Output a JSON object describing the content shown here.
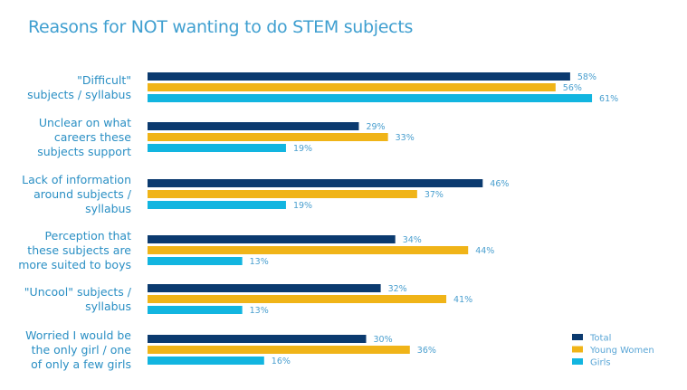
{
  "chart_data": {
    "type": "bar",
    "orientation": "horizontal",
    "title": "Reasons for NOT wanting to do STEM subjects",
    "xlabel": "",
    "ylabel": "",
    "xlim": [
      0,
      100
    ],
    "grid": false,
    "legend_position": "bottom-right",
    "categories": [
      [
        "\"Difficult\"",
        "subjects / syllabus"
      ],
      [
        "Unclear on what",
        "careers these",
        "subjects support"
      ],
      [
        "Lack of information",
        "around subjects /",
        "syllabus"
      ],
      [
        "Perception that",
        "these subjects are",
        "more suited to boys"
      ],
      [
        "\"Uncool\" subjects /",
        "syllabus"
      ],
      [
        "Worried I would be",
        "the only girl / one",
        "of only a few girls"
      ]
    ],
    "series": [
      {
        "name": "Total",
        "color": "#0b3a6f",
        "values": [
          58,
          29,
          46,
          34,
          32,
          30
        ],
        "labels": [
          "58%",
          "29%",
          "46%",
          "34%",
          "32%",
          "30%"
        ]
      },
      {
        "name": "Young Women",
        "color": "#f0b418",
        "values": [
          56,
          33,
          37,
          44,
          41,
          36
        ],
        "labels": [
          "56%",
          "33%",
          "37%",
          "44%",
          "41%",
          "36%"
        ]
      },
      {
        "name": "Girls",
        "color": "#12b5e0",
        "values": [
          61,
          19,
          19,
          13,
          13,
          16
        ],
        "labels": [
          "61%",
          "19%",
          "19%",
          "13%",
          "13%",
          "16%"
        ]
      }
    ]
  }
}
